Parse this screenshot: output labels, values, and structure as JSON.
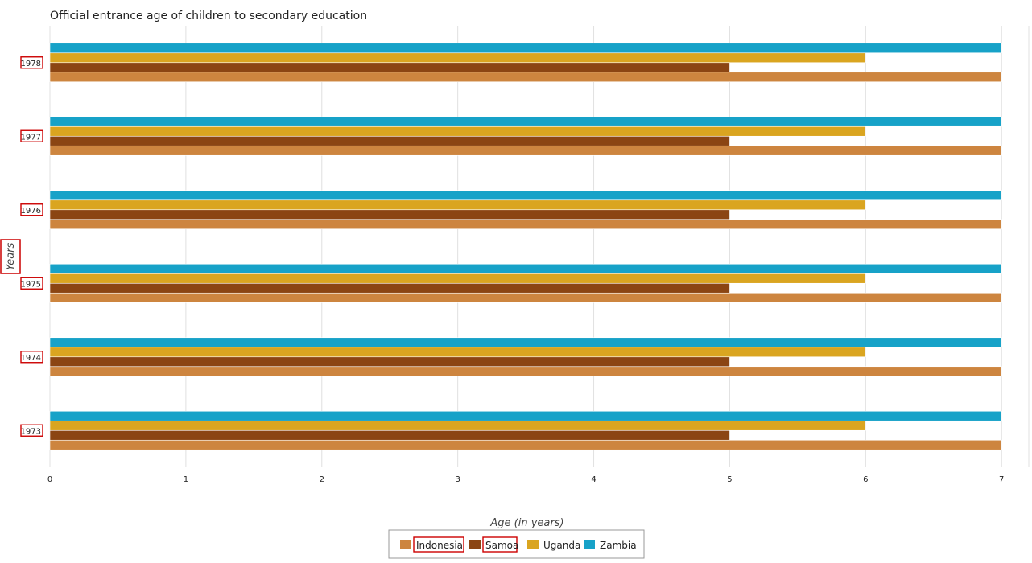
{
  "chart_data": {
    "type": "bar",
    "orientation": "horizontal",
    "title": "Official entrance age of children to secondary education",
    "xlabel": "Age (in years)",
    "ylabel": "Years",
    "categories": [
      "1973",
      "1974",
      "1975",
      "1976",
      "1977",
      "1978"
    ],
    "series": [
      {
        "name": "Indonesia",
        "color": "#cd853f",
        "values": [
          7,
          7,
          7,
          7,
          7,
          7
        ]
      },
      {
        "name": "Samoa",
        "color": "#8b4513",
        "values": [
          5,
          5,
          5,
          5,
          5,
          5
        ]
      },
      {
        "name": "Uganda",
        "color": "#daa520",
        "values": [
          6,
          6,
          6,
          6,
          6,
          6
        ]
      },
      {
        "name": "Zambia",
        "color": "#17a2c8",
        "values": [
          7,
          7,
          7,
          7,
          7,
          7
        ]
      }
    ],
    "xlim": [
      0,
      7.2
    ],
    "xticks": [
      "0",
      "1",
      "2",
      "3",
      "4",
      "5",
      "6",
      "7"
    ],
    "grid": true,
    "legend_position": "bottom-center"
  }
}
